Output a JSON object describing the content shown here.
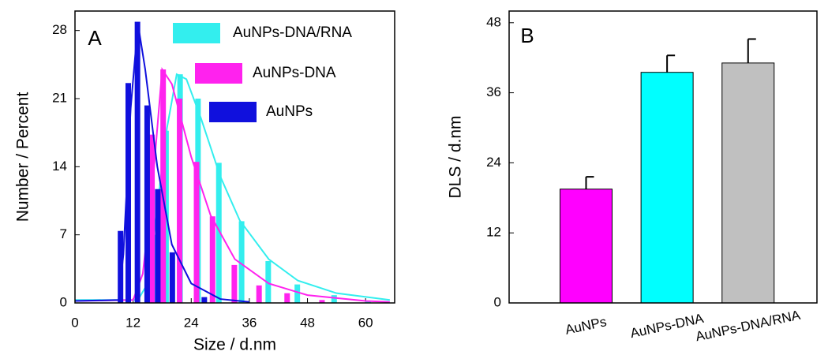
{
  "chart_data": [
    {
      "type": "bar",
      "title": "A",
      "x_label": "Size / d.nm",
      "y_label": "Number / Percent",
      "xlim": [
        0,
        66
      ],
      "ylim": [
        0,
        30
      ],
      "xticks": [
        0,
        12,
        24,
        36,
        48,
        60
      ],
      "yticks": [
        0,
        7,
        14,
        21,
        28
      ],
      "series": [
        {
          "name": "AuNPs-DNA/RNA",
          "color": "#33eeee",
          "x": [
            16.2,
            18.8,
            21.7,
            25.4,
            29.7,
            34.4,
            39.9,
            45.9,
            53.5,
            60.5
          ],
          "values": [
            7,
            17.7,
            23.5,
            21,
            14.4,
            8.4,
            4.3,
            1.9,
            0.8,
            0.2
          ],
          "curve_x": [
            0,
            13,
            15,
            17,
            19,
            21,
            23,
            26,
            30,
            34,
            40,
            46,
            54,
            65
          ],
          "curve_y": [
            0.3,
            0.3,
            2,
            10,
            18,
            23.5,
            23,
            19,
            13,
            8.5,
            4.5,
            2.3,
            1,
            0.3
          ]
        },
        {
          "name": "AuNPs-DNA",
          "color": "#ff22ee",
          "x": [
            15.9,
            18.2,
            21.6,
            25.1,
            28.4,
            32.9,
            38,
            43.8,
            51
          ],
          "values": [
            17.3,
            24,
            21,
            14.5,
            8.9,
            3.9,
            1.8,
            1,
            0.3
          ],
          "curve_x": [
            0,
            12,
            14,
            16,
            18,
            20,
            24,
            28,
            33,
            40,
            48,
            60,
            65
          ],
          "curve_y": [
            0.2,
            0.3,
            3,
            12,
            24,
            22.5,
            15,
            9,
            4.5,
            2,
            0.8,
            0.2,
            0.1
          ]
        },
        {
          "name": "AuNPs",
          "color": "#1010dd",
          "x": [
            9.4,
            11,
            12.9,
            14.9,
            17.1,
            20.1,
            26.7
          ],
          "values": [
            7.4,
            22.6,
            28.9,
            20.3,
            11.7,
            5.2,
            0.6
          ],
          "curve_x": [
            0,
            9,
            10,
            11.5,
            13,
            14.5,
            17,
            20,
            24,
            30,
            36
          ],
          "curve_y": [
            0.2,
            0.3,
            5,
            20,
            28.7,
            24,
            14,
            6,
            2,
            0.4,
            0.1
          ]
        }
      ]
    },
    {
      "type": "errorbar",
      "title": "B",
      "y_label": "DLS / d.nm",
      "categories": [
        "AuNPs",
        "AuNPs-DNA",
        "AuNPs-DNA/RNA"
      ],
      "values": [
        19.5,
        39.5,
        41.1
      ],
      "errors": [
        2.1,
        2.9,
        4.1
      ],
      "colors": [
        "#ff00ff",
        "#00ffff",
        "#c0c0c0"
      ],
      "ylim": [
        0,
        50
      ],
      "yticks": [
        0,
        12,
        24,
        36,
        48
      ]
    }
  ]
}
